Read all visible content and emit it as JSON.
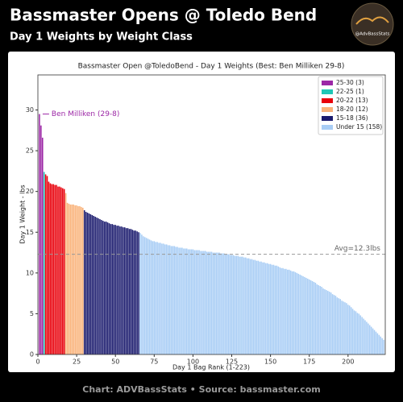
{
  "header": {
    "title": "Bassmaster Opens @ Toledo Bend",
    "subtitle": "Day 1 Weights by Weight Class",
    "logo": "@AdvBassStats"
  },
  "footer": "Chart: ADVBassStats • Source: bassmaster.com",
  "chart_data": {
    "type": "bar",
    "title": "Bassmaster Open @ToledoBend - Day 1 Weights (Best: Ben Milliken 29-8)",
    "x_label": "Day 1 Bag Rank (1-223)",
    "y_label": "Day 1 Weight - lbs",
    "xlim": [
      0,
      224
    ],
    "ylim": [
      0,
      34.3
    ],
    "xticks": [
      0,
      25,
      50,
      75,
      100,
      125,
      150,
      175,
      200
    ],
    "yticks": [
      0,
      5,
      10,
      15,
      20,
      25,
      30
    ],
    "grid": false,
    "legend": "upper right",
    "annotation": "Ben Milliken (29-8)",
    "avg_line": {
      "value": 12.3,
      "label": "Avg=12.3lbs"
    },
    "series": [
      {
        "name": "25-30 (3)",
        "color": "#9c27a6",
        "values": [
          29.5,
          28.1,
          26.6
        ]
      },
      {
        "name": "22-25 (1)",
        "color": "#1fc7b6",
        "values": [
          22.4
        ]
      },
      {
        "name": "20-22 (13)",
        "color": "#e8000b",
        "values": [
          22.1,
          21.9,
          21.2,
          21.0,
          20.9,
          20.9,
          20.8,
          20.8,
          20.6,
          20.6,
          20.5,
          20.4,
          20.3
        ]
      },
      {
        "name": "18-20 (12)",
        "color": "#f9b27a",
        "values": [
          19.8,
          18.6,
          18.5,
          18.4,
          18.4,
          18.4,
          18.3,
          18.3,
          18.2,
          18.2,
          18.1,
          18.0
        ]
      },
      {
        "name": "15-18 (36)",
        "color": "#1b1b6e",
        "values": [
          17.7,
          17.5,
          17.4,
          17.3,
          17.2,
          17.1,
          17.0,
          16.9,
          16.8,
          16.7,
          16.6,
          16.5,
          16.4,
          16.3,
          16.3,
          16.2,
          16.1,
          16.0,
          16.0,
          15.9,
          15.9,
          15.8,
          15.8,
          15.7,
          15.7,
          15.6,
          15.6,
          15.5,
          15.5,
          15.4,
          15.4,
          15.3,
          15.2,
          15.2,
          15.1,
          15.0
        ]
      },
      {
        "name": "Under 15 (158)",
        "color": "#a8cdf5",
        "values": [
          14.9,
          14.7,
          14.5,
          14.4,
          14.3,
          14.2,
          14.1,
          14.0,
          13.9,
          13.9,
          13.8,
          13.8,
          13.7,
          13.7,
          13.6,
          13.6,
          13.5,
          13.5,
          13.4,
          13.4,
          13.3,
          13.3,
          13.3,
          13.2,
          13.2,
          13.1,
          13.1,
          13.1,
          13.0,
          13.0,
          13.0,
          12.9,
          12.9,
          12.9,
          12.9,
          12.8,
          12.8,
          12.8,
          12.8,
          12.7,
          12.7,
          12.7,
          12.7,
          12.6,
          12.6,
          12.6,
          12.6,
          12.5,
          12.5,
          12.5,
          12.5,
          12.5,
          12.4,
          12.4,
          12.4,
          12.3,
          12.3,
          12.3,
          12.2,
          12.2,
          12.2,
          12.1,
          12.1,
          12.1,
          12.0,
          12.0,
          12.0,
          11.9,
          11.9,
          11.8,
          11.8,
          11.7,
          11.7,
          11.6,
          11.6,
          11.5,
          11.5,
          11.4,
          11.4,
          11.3,
          11.3,
          11.2,
          11.2,
          11.1,
          11.1,
          11.0,
          11.0,
          10.9,
          10.9,
          10.8,
          10.7,
          10.6,
          10.6,
          10.5,
          10.5,
          10.4,
          10.4,
          10.3,
          10.2,
          10.2,
          10.1,
          10.0,
          9.9,
          9.8,
          9.7,
          9.6,
          9.5,
          9.4,
          9.3,
          9.2,
          9.1,
          9.0,
          8.9,
          8.8,
          8.6,
          8.5,
          8.4,
          8.3,
          8.1,
          8.0,
          7.9,
          7.8,
          7.7,
          7.6,
          7.4,
          7.3,
          7.2,
          7.0,
          6.9,
          6.8,
          6.6,
          6.5,
          6.4,
          6.3,
          6.1,
          6.0,
          5.8,
          5.6,
          5.4,
          5.3,
          5.1,
          5.0,
          4.8,
          4.6,
          4.4,
          4.2,
          4.0,
          3.8,
          3.6,
          3.4,
          3.2,
          3.0,
          2.8,
          2.6,
          2.4,
          2.2,
          2.0,
          1.8
        ]
      }
    ]
  }
}
